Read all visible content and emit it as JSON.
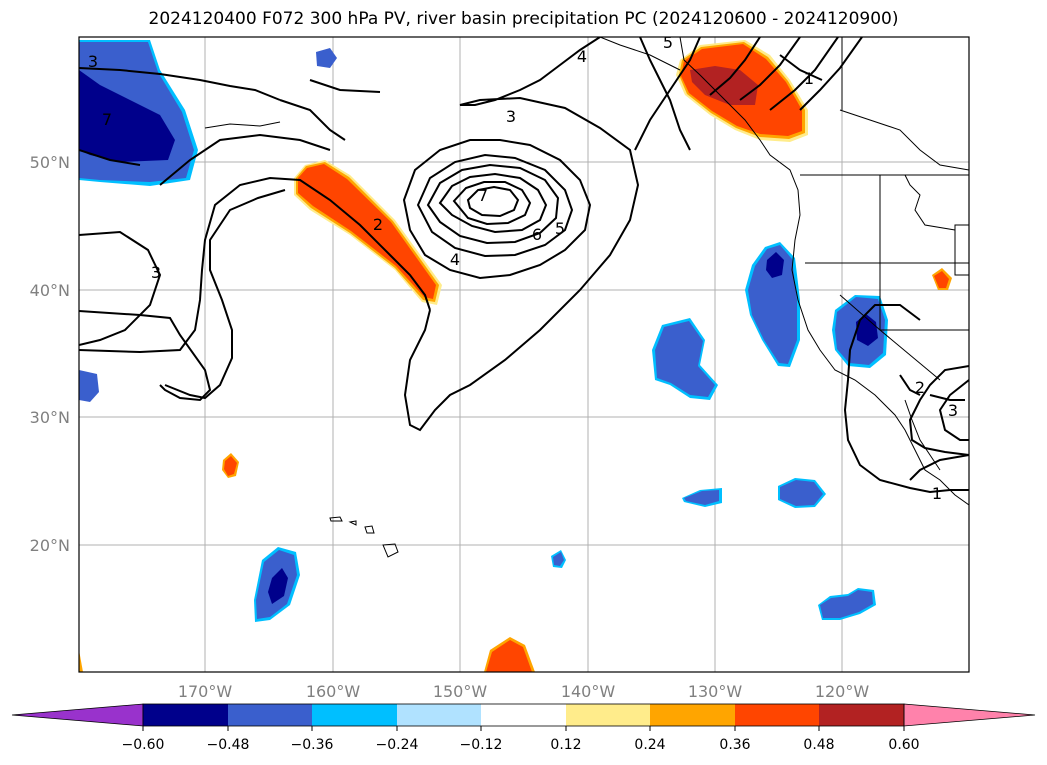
{
  "title": "2024120400 F072 300 hPa PV, river basin precipitation PC (2024120600 - 2024120900)",
  "map": {
    "lon_labels": [
      "170°W",
      "160°W",
      "150°W",
      "140°W",
      "130°W",
      "120°W"
    ],
    "lat_labels": [
      "50°N",
      "40°N",
      "30°N",
      "20°N"
    ],
    "contour_labels": [
      "3",
      "4",
      "5",
      "1",
      "3",
      "2",
      "3",
      "7",
      "6",
      "5",
      "4",
      "7",
      "2",
      "3",
      "1"
    ]
  },
  "colorbar": {
    "ticks": [
      "−0.60",
      "−0.48",
      "−0.36",
      "−0.24",
      "−0.12",
      "0.12",
      "0.24",
      "0.36",
      "0.48",
      "0.60"
    ],
    "colors": {
      "under": "#9932cc",
      "c1": "#00008b",
      "c2": "#3a5fcd",
      "c3": "#00bfff",
      "c4": "#b0e2ff",
      "c5": "#ffffff",
      "c6": "#ffec8b",
      "c7": "#ffa500",
      "c8": "#ff4500",
      "c9": "#b22222",
      "over": "#ff82ab"
    }
  }
}
